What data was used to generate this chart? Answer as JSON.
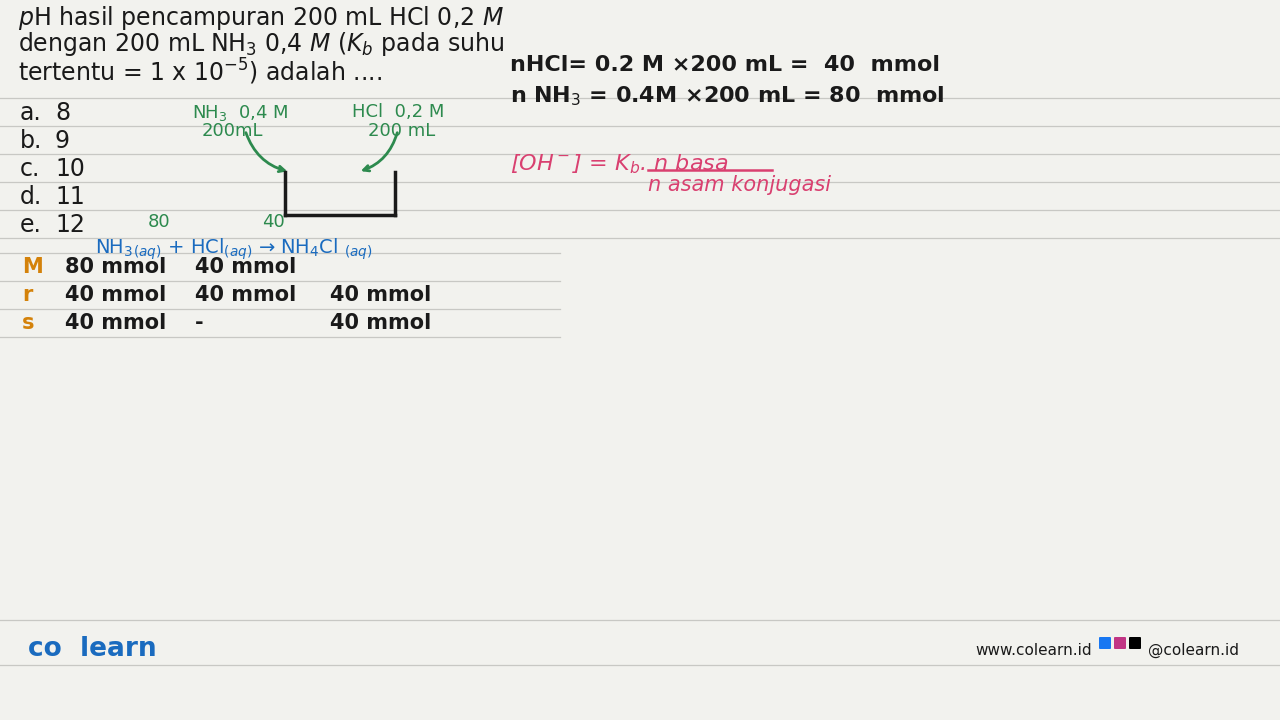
{
  "bg_color": "#f2f2ee",
  "black": "#1a1a1a",
  "blue": "#1a6bbf",
  "green": "#2d8a4e",
  "pink": "#d94070",
  "orange": "#d4820a",
  "line_color": "#c8c8c4",
  "title1": "$p$H hasil pencampuran 200 mL HCl 0,2 $M$",
  "title2": "dengan 200 mL NH$_3$ 0,4 $M$ ($K_b$ pada suhu",
  "title3": "tertentu = 1 x 10$^{-5}$) adalah ....",
  "choices_labels": [
    "a.",
    "b.",
    "c.",
    "d.",
    "e."
  ],
  "choices_values": [
    "8",
    "9",
    "10",
    "11",
    "12"
  ],
  "nh3_label1": "NH$_3$  0,4 M",
  "nh3_label2": "200mL",
  "hcl_label1": "HCl  0,2 M",
  "hcl_label2": "200 mL",
  "num80": "80",
  "num40": "40",
  "reaction": "NH$_3$$_{(aq)}$ + HCl$_{(aq)}$ -> NH$_4$Cl $_{(aq)}$",
  "nhcl_calc": "nHCl= 0.2 M x200 mL =  40  mmol",
  "nnh3_calc": "n NH$_3$ = 0.4M x200 mL = 80  mmol",
  "oh_top": "[OH$^-$] = K$_b$. n basa",
  "oh_bottom": "n asam konjugasi",
  "row_labels": [
    "M",
    "r",
    "s"
  ],
  "m_vals": [
    "80 mmol",
    "40 mmol",
    ""
  ],
  "r_vals": [
    "40 mmol",
    "40 mmol",
    "40 mmol"
  ],
  "s_vals": [
    "40 mmol",
    "-",
    "40 mmol"
  ],
  "colearn": "co  learn",
  "website": "www.colearn.id",
  "social": "@colearn.id"
}
